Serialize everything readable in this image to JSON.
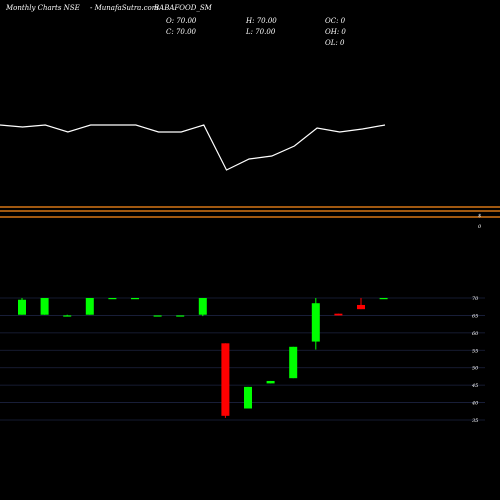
{
  "header": {
    "title": "Monthly Charts NSE",
    "site": "-  MunafaSutra.com",
    "symbol": "BABAFOOD_SM",
    "o": "O: 70.00",
    "h": "H: 70.00",
    "oc": "OC: 0",
    "c": "C: 70.00",
    "l": "L: 70.00",
    "oh": "OH: 0",
    "ol": "OL: 0"
  },
  "side_labels": {
    "s": "$",
    "zero": "0"
  },
  "colors": {
    "up": "#00ff00",
    "down": "#ff0000",
    "line": "#ffffff",
    "band": "#ff8c1a",
    "grid": "#1c2340"
  },
  "chart_data": [
    {
      "type": "line",
      "title": "",
      "x": [
        1,
        2,
        3,
        4,
        5,
        6,
        7,
        8,
        9,
        10,
        11,
        12,
        13,
        14,
        15,
        16,
        17,
        18
      ],
      "values": [
        125,
        127,
        125,
        132,
        125,
        125,
        125,
        132,
        132,
        125,
        170,
        159,
        156,
        146,
        128,
        132,
        129,
        125
      ],
      "note": "relative strength line, unlabelled, values in inverted screen scale units"
    },
    {
      "type": "candlestick",
      "ylim": [
        33,
        73
      ],
      "yticks": [
        35,
        40,
        45,
        50,
        55,
        60,
        65,
        70
      ],
      "candles": [
        {
          "i": 1,
          "o": 65.2,
          "h": 70,
          "l": 65.2,
          "c": 69.5
        },
        {
          "i": 2,
          "o": 65.2,
          "h": 70,
          "l": 65.2,
          "c": 70
        },
        {
          "i": 3,
          "o": 65,
          "h": 65.2,
          "l": 64.8,
          "c": 65
        },
        {
          "i": 4,
          "o": 65.2,
          "h": 70,
          "l": 65.2,
          "c": 70
        },
        {
          "i": 5,
          "o": 70,
          "h": 70,
          "l": 70,
          "c": 70
        },
        {
          "i": 6,
          "o": 70,
          "h": 70,
          "l": 70,
          "c": 70
        },
        {
          "i": 7,
          "o": 65,
          "h": 65,
          "l": 65,
          "c": 65
        },
        {
          "i": 8,
          "o": 65,
          "h": 65,
          "l": 65,
          "c": 65
        },
        {
          "i": 9,
          "o": 65.2,
          "h": 70,
          "l": 64.8,
          "c": 70
        },
        {
          "i": 10,
          "o": 57,
          "h": 57,
          "l": 35.6,
          "c": 36.2
        },
        {
          "i": 11,
          "o": 38.3,
          "h": 44.5,
          "l": 38.3,
          "c": 44.5
        },
        {
          "i": 12,
          "o": 45.5,
          "h": 46.2,
          "l": 45.5,
          "c": 46.2
        },
        {
          "i": 13,
          "o": 47,
          "h": 56,
          "l": 47,
          "c": 56
        },
        {
          "i": 14,
          "o": 57.5,
          "h": 70,
          "l": 55.2,
          "c": 68.5
        },
        {
          "i": 15,
          "o": 65.5,
          "h": 65.5,
          "l": 65,
          "c": 65
        },
        {
          "i": 16,
          "o": 68,
          "h": 70,
          "l": 66.8,
          "c": 66.8
        },
        {
          "i": 17,
          "o": 70,
          "h": 70,
          "l": 70,
          "c": 70
        }
      ]
    }
  ]
}
